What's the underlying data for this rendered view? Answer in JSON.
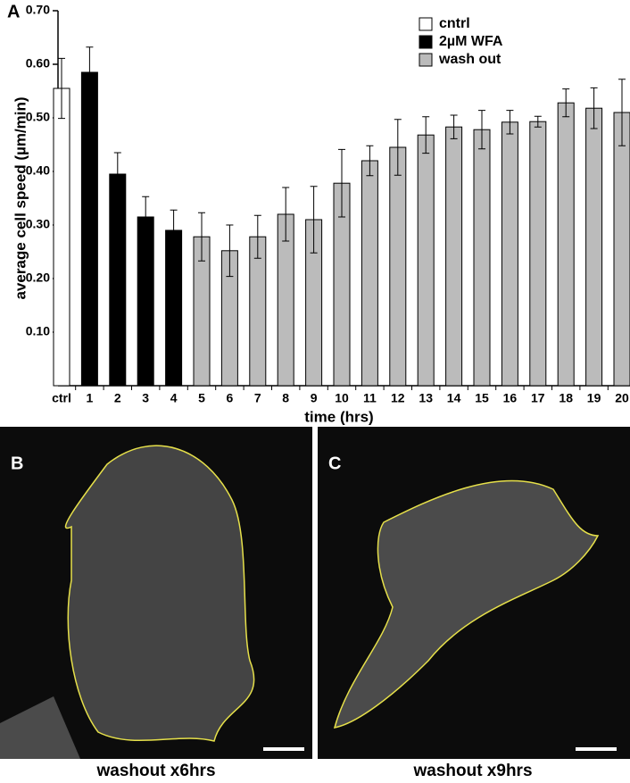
{
  "chart_data": {
    "type": "bar",
    "panel": "A",
    "x_label": "time (hrs)",
    "y_label": "average cell speed (µm/min)",
    "categories": [
      "ctrl",
      "1",
      "2",
      "3",
      "4",
      "5",
      "6",
      "7",
      "8",
      "9",
      "10",
      "11",
      "12",
      "13",
      "14",
      "15",
      "16",
      "17",
      "18",
      "19",
      "20"
    ],
    "series": [
      {
        "name": "cntrl",
        "color": "#ffffff",
        "values": [
          0.555,
          null,
          null,
          null,
          null,
          null,
          null,
          null,
          null,
          null,
          null,
          null,
          null,
          null,
          null,
          null,
          null,
          null,
          null,
          null,
          null
        ],
        "errors": [
          0.056,
          null,
          null,
          null,
          null,
          null,
          null,
          null,
          null,
          null,
          null,
          null,
          null,
          null,
          null,
          null,
          null,
          null,
          null,
          null,
          null
        ]
      },
      {
        "name": "2µM WFA",
        "color": "#000000",
        "values": [
          null,
          0.585,
          0.395,
          0.315,
          0.29,
          null,
          null,
          null,
          null,
          null,
          null,
          null,
          null,
          null,
          null,
          null,
          null,
          null,
          null,
          null,
          null
        ],
        "errors": [
          null,
          0.047,
          0.04,
          0.038,
          0.038,
          null,
          null,
          null,
          null,
          null,
          null,
          null,
          null,
          null,
          null,
          null,
          null,
          null,
          null,
          null,
          null
        ]
      },
      {
        "name": "wash out",
        "color": "#bbbbbb",
        "values": [
          null,
          null,
          null,
          null,
          null,
          0.278,
          0.252,
          0.278,
          0.32,
          0.31,
          0.378,
          0.42,
          0.445,
          0.468,
          0.483,
          0.478,
          0.492,
          0.493,
          0.528,
          0.518,
          0.51
        ],
        "errors": [
          null,
          null,
          null,
          null,
          null,
          0.045,
          0.048,
          0.04,
          0.05,
          0.062,
          0.063,
          0.028,
          0.052,
          0.034,
          0.022,
          0.036,
          0.022,
          0.01,
          0.026,
          0.038,
          0.062
        ]
      }
    ],
    "ylim": [
      0,
      0.7
    ],
    "yticks": [
      {
        "value": 0.1,
        "label": "0.10"
      },
      {
        "value": 0.2,
        "label": "0.20"
      },
      {
        "value": 0.3,
        "label": "0.30"
      },
      {
        "value": 0.4,
        "label": "0.40"
      },
      {
        "value": 0.5,
        "label": "0.50"
      },
      {
        "value": 0.6,
        "label": "0.60"
      },
      {
        "value": 0.7,
        "label": "0.70"
      }
    ],
    "legend": "top-right"
  },
  "images": [
    {
      "panel": "B",
      "caption": "washout x6hrs"
    },
    {
      "panel": "C",
      "caption": "washout x9hrs"
    }
  ]
}
